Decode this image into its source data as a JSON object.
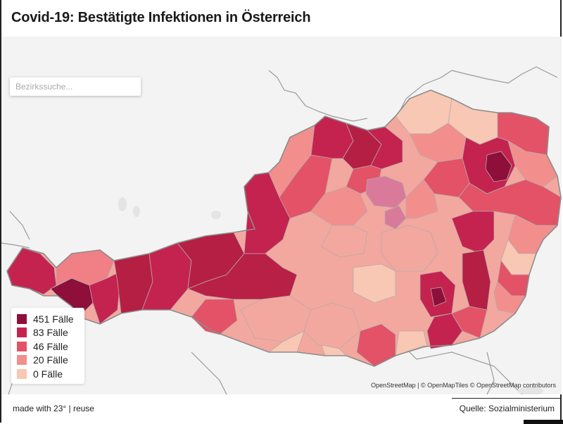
{
  "title": "Covid-19: Bestätigte Infektionen in Österreich",
  "search": {
    "placeholder": "Bezirkssuche..."
  },
  "legend": [
    {
      "label": "451 Fälle",
      "color": "#8e0f3a"
    },
    {
      "label": "83 Fälle",
      "color": "#c4234f"
    },
    {
      "label": "46 Fälle",
      "color": "#e35266"
    },
    {
      "label": "20 Fälle",
      "color": "#f28f8d"
    },
    {
      "label": "0 Fälle",
      "color": "#f8c8b4"
    }
  ],
  "map": {
    "attribution": "OpenStreetMap | © OpenMapTiles © OpenStreetMap contributors",
    "highlight_color": "#d97a9a"
  },
  "footer": {
    "credit": "made with 23° | reuse",
    "source": "Quelle: Sozialministerium"
  }
}
